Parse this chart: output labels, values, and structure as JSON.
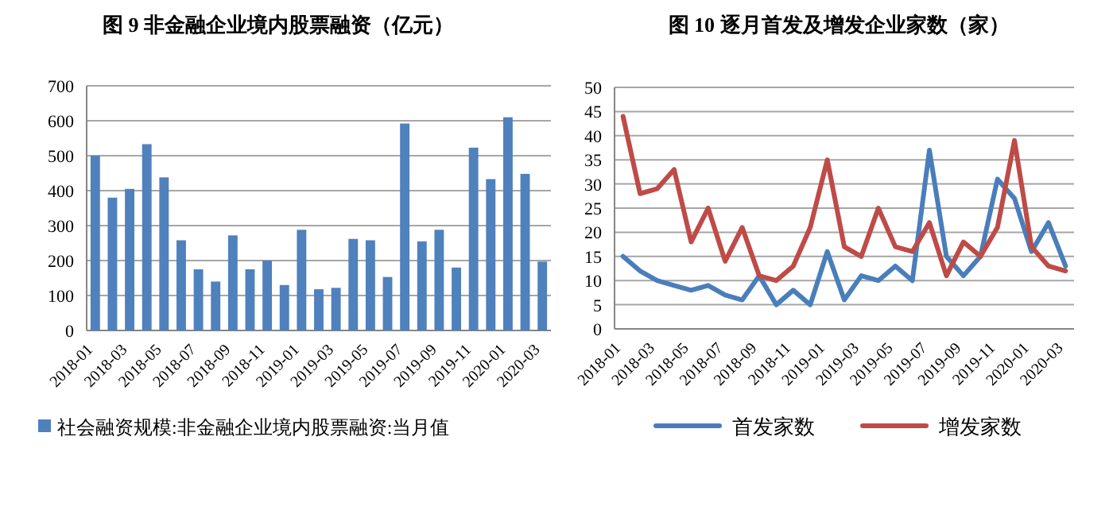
{
  "chart_data": [
    {
      "type": "bar",
      "title": "图 9  非金融企业境内股票融资（亿元）",
      "categories": [
        "2018-01",
        null,
        "2018-03",
        null,
        "2018-05",
        null,
        "2018-07",
        null,
        "2018-09",
        null,
        "2018-11",
        null,
        "2019-01",
        null,
        "2019-03",
        null,
        "2019-05",
        null,
        "2019-07",
        null,
        "2019-09",
        null,
        "2019-11",
        null,
        "2020-01",
        null,
        "2020-03"
      ],
      "series": [
        {
          "name": "社会融资规模:非金融企业境内股票融资:当月值",
          "color": "#4f81bd",
          "values": [
            500,
            380,
            405,
            533,
            438,
            258,
            175,
            140,
            272,
            175,
            200,
            130,
            288,
            118,
            122,
            262,
            258,
            153,
            592,
            255,
            288,
            180,
            523,
            433,
            610,
            448,
            197
          ]
        }
      ],
      "ylim": [
        0,
        700
      ],
      "yticks": [
        0,
        100,
        200,
        300,
        400,
        500,
        600,
        700
      ],
      "grid": "y",
      "legend": "bottom"
    },
    {
      "type": "line",
      "title": "图 10  逐月首发及增发企业家数（家）",
      "categories": [
        "2018-01",
        null,
        "2018-03",
        null,
        "2018-05",
        null,
        "2018-07",
        null,
        "2018-09",
        null,
        "2018-11",
        null,
        "2019-01",
        null,
        "2019-03",
        null,
        "2019-05",
        null,
        "2019-07",
        null,
        "2019-09",
        null,
        "2019-11",
        null,
        "2020-01",
        null,
        "2020-03"
      ],
      "series": [
        {
          "name": "首发家数",
          "color": "#4a7ebb",
          "values": [
            15,
            12,
            10,
            9,
            8,
            9,
            7,
            6,
            11,
            5,
            8,
            5,
            16,
            6,
            11,
            10,
            13,
            10,
            37,
            15,
            11,
            15,
            31,
            27,
            16,
            22,
            13
          ]
        },
        {
          "name": "增发家数",
          "color": "#be4b48",
          "values": [
            44,
            28,
            29,
            33,
            18,
            25,
            14,
            21,
            11,
            10,
            13,
            21,
            35,
            17,
            15,
            25,
            17,
            16,
            22,
            11,
            18,
            15,
            21,
            39,
            17,
            13,
            12
          ]
        }
      ],
      "ylim": [
        0,
        50
      ],
      "yticks": [
        0,
        5,
        10,
        15,
        20,
        25,
        30,
        35,
        40,
        45,
        50
      ],
      "grid": "y",
      "legend": "bottom"
    }
  ]
}
